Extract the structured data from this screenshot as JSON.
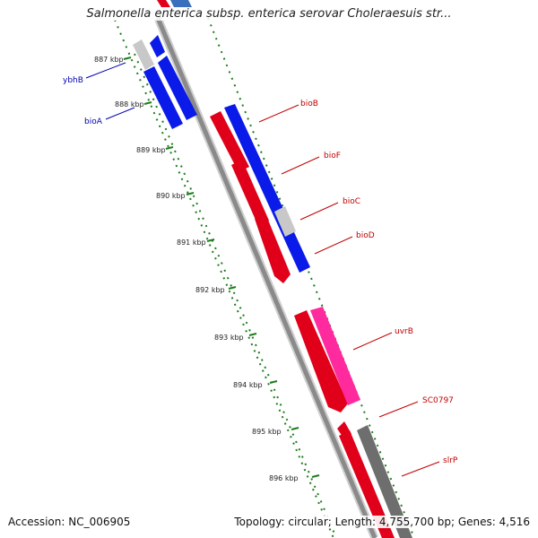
{
  "title": "Salmonella enterica subsp. enterica serovar Choleraesuis str...",
  "footer": {
    "accession": "Accession: NC_006905",
    "stats": "Topology: circular; Length: 4,755,700 bp; Genes: 4,516"
  },
  "colors": {
    "forward_gene": "#e0001a",
    "reverse_gene": "#0a1ae8",
    "pseudo_gene": "#c8c8c8",
    "rna_gene": "#ff2a9e",
    "other_gene": "#6e6e6e",
    "backbone": "#888888",
    "tick": "#1e7d1e",
    "label_forward": "#c00000",
    "label_reverse": "#0000b0"
  },
  "kbp_labels": [
    "887 kbp",
    "888 kbp",
    "889 kbp",
    "890 kbp",
    "891 kbp",
    "892 kbp",
    "893 kbp",
    "894 kbp",
    "895 kbp",
    "896 kbp"
  ],
  "gene_labels": {
    "reverse": [
      "ybhB",
      "bioA"
    ],
    "forward": [
      "bioB",
      "bioF",
      "bioC",
      "bioD",
      "uvrB",
      "SC0797",
      "slrP"
    ]
  }
}
